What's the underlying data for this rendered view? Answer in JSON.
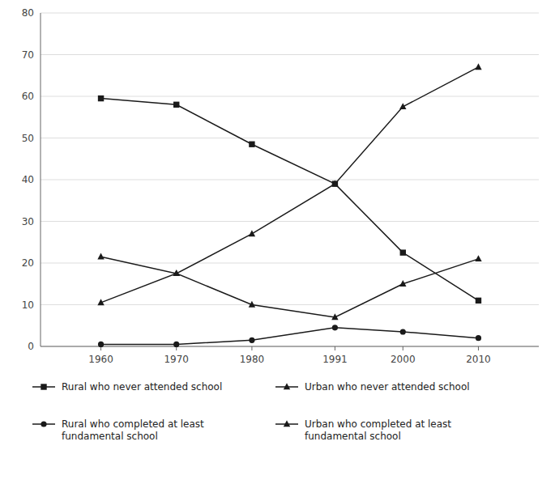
{
  "chart_data": {
    "type": "line",
    "x": [
      1960,
      1970,
      1980,
      1991,
      2000,
      2010
    ],
    "series": [
      {
        "name": "Rural who never attended school",
        "color": "#1a1a1a",
        "marker": "square",
        "values": [
          59.5,
          58.0,
          48.5,
          39.0,
          22.5,
          11.0
        ]
      },
      {
        "name": "Rural who completed at least\nfundamental school",
        "color": "#1a1a1a",
        "marker": "circle",
        "values": [
          0.5,
          0.5,
          1.5,
          4.5,
          3.5,
          2.0
        ]
      },
      {
        "name": "Urban who never attended school",
        "color": "#1a1a1a",
        "marker": "triangle",
        "values": [
          21.5,
          17.5,
          27.0,
          39.0,
          57.5,
          67.0
        ]
      },
      {
        "name": "Urban who completed at least\nfundamental school",
        "color": "#1a1a1a",
        "marker": "triangle",
        "values": [
          10.5,
          17.5,
          10.0,
          7.0,
          15.0,
          21.0
        ]
      }
    ],
    "xlim": [
      1952,
      2018
    ],
    "xticks": [
      1960,
      1970,
      1980,
      1991,
      2000,
      2010
    ],
    "ylim": [
      0,
      80
    ],
    "yticks": [
      0,
      10,
      20,
      30,
      40,
      50,
      60,
      70,
      80
    ],
    "grid": true,
    "legend": "bottom"
  }
}
